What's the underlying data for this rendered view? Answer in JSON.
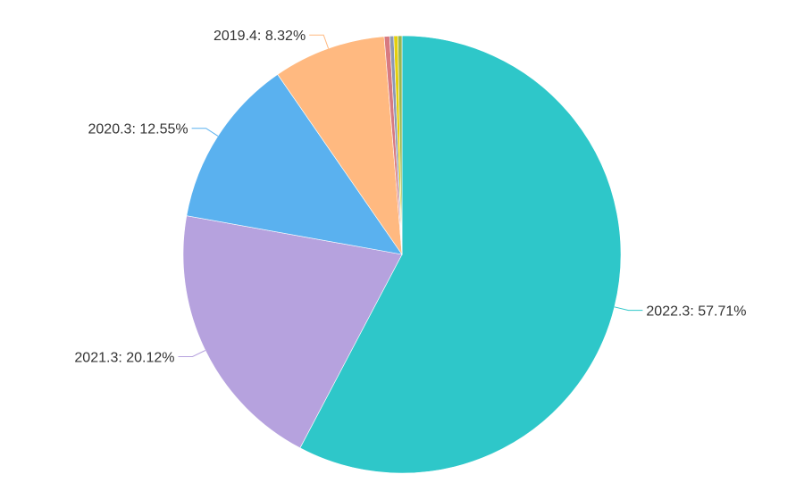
{
  "chart_data": {
    "type": "pie",
    "title": "",
    "slices": [
      {
        "label": "2022.3",
        "value": 57.71,
        "display": "2022.3: 57.71%",
        "color": "#2ec7c9",
        "show_label": true
      },
      {
        "label": "2021.3",
        "value": 20.12,
        "display": "2021.3: 20.12%",
        "color": "#b6a2de",
        "show_label": true
      },
      {
        "label": "2020.3",
        "value": 12.55,
        "display": "2020.3: 12.55%",
        "color": "#5ab1ef",
        "show_label": true
      },
      {
        "label": "2019.4",
        "value": 8.32,
        "display": "2019.4: 8.32%",
        "color": "#ffb980",
        "show_label": true
      },
      {
        "label": "",
        "value": 0.4,
        "display": "",
        "color": "#d87a80",
        "show_label": false
      },
      {
        "label": "",
        "value": 0.3,
        "display": "",
        "color": "#8d98b3",
        "show_label": false
      },
      {
        "label": "",
        "value": 0.3,
        "display": "",
        "color": "#e5cf0d",
        "show_label": false
      },
      {
        "label": "",
        "value": 0.3,
        "display": "",
        "color": "#97b552",
        "show_label": false
      }
    ]
  }
}
